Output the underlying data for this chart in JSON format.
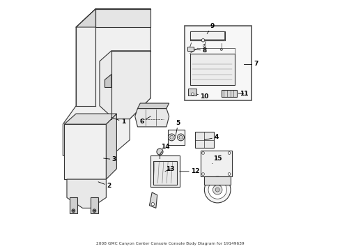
{
  "title": "2008 GMC Canyon Center Console Console Body Diagram for 19149639",
  "bg_color": "#ffffff",
  "line_color": "#333333",
  "label_color": "#000000",
  "figsize": [
    4.89,
    3.6
  ],
  "dpi": 100,
  "xlim": [
    0,
    8.5
  ],
  "ylim": [
    0,
    9.5
  ]
}
